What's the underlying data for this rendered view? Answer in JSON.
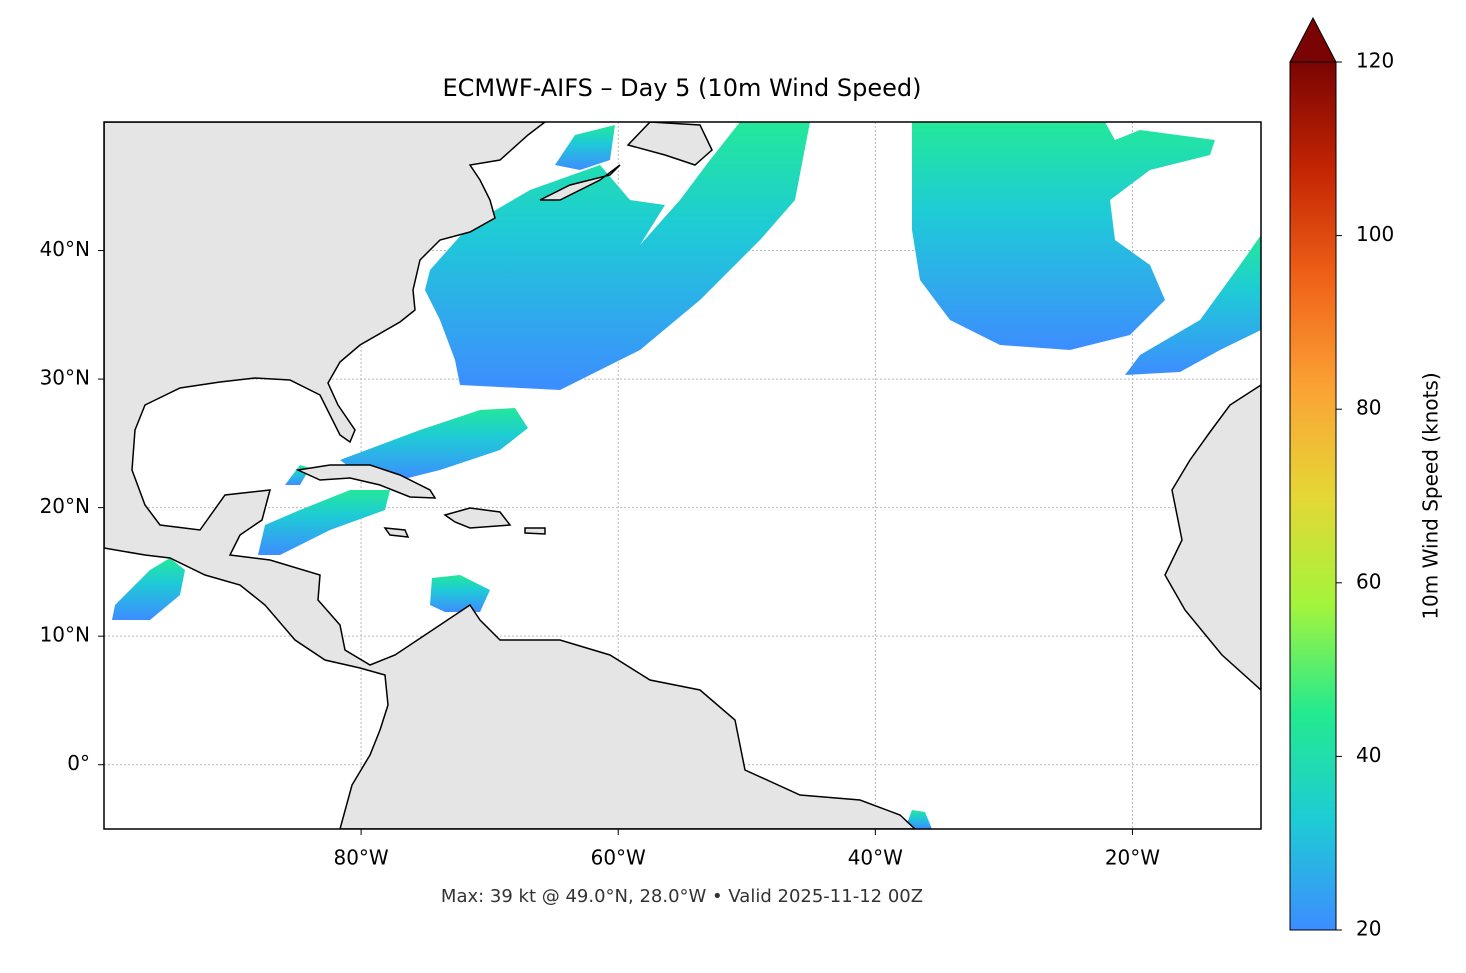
{
  "chart_data": {
    "type": "map",
    "title": "ECMWF-AIFS – Day 5 (10m Wind Speed)",
    "footer": "Max: 39 kt @ 49.0°N, 28.0°W • Valid 2025-11-12 00Z",
    "xlim": [
      -100,
      -10
    ],
    "ylim": [
      -5,
      50
    ],
    "xticks": [
      {
        "value": -80,
        "label": "80°W"
      },
      {
        "value": -60,
        "label": "60°W"
      },
      {
        "value": -40,
        "label": "40°W"
      },
      {
        "value": -20,
        "label": "20°W"
      }
    ],
    "yticks": [
      {
        "value": 0,
        "label": "0°"
      },
      {
        "value": 10,
        "label": "10°N"
      },
      {
        "value": 20,
        "label": "20°N"
      },
      {
        "value": 30,
        "label": "30°N"
      },
      {
        "value": 40,
        "label": "40°N"
      }
    ],
    "grid": true,
    "colorbar": {
      "label": "10m Wind Speed (knots)",
      "lim": [
        20,
        120
      ],
      "ticks": [
        20,
        40,
        60,
        80,
        100,
        120
      ],
      "colors": [
        "#3d8dff",
        "#1ecbd6",
        "#23ea8f",
        "#a4f43c",
        "#e5d735",
        "#fba235",
        "#f06218",
        "#c42503",
        "#7a0403"
      ],
      "extend": "max"
    }
  }
}
